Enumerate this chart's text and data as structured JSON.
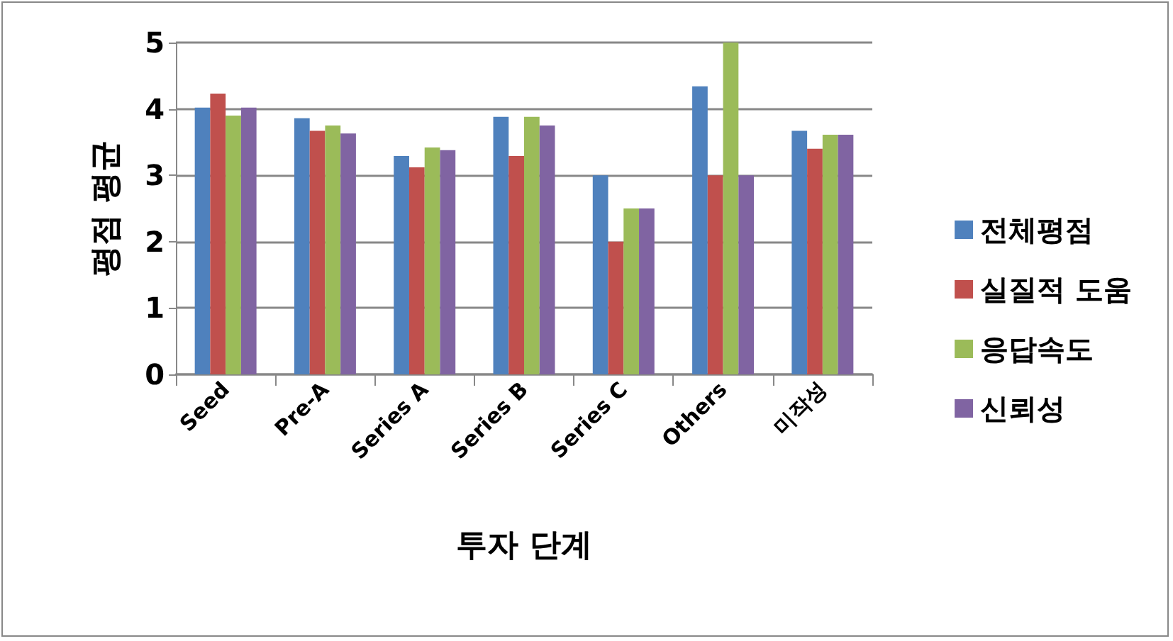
{
  "chart_data": {
    "type": "bar",
    "xlabel": "투자 단계",
    "ylabel": "평점 평균",
    "categories": [
      "Seed",
      "Pre-A",
      "Series A",
      "Series B",
      "Series C",
      "Others",
      "미작성"
    ],
    "series": [
      {
        "name": "전체평점",
        "color": "#4f81bd",
        "values": [
          4.02,
          3.86,
          3.29,
          3.88,
          3.0,
          4.34,
          3.67
        ]
      },
      {
        "name": "실질적 도움",
        "color": "#c0504d",
        "values": [
          4.23,
          3.67,
          3.12,
          3.29,
          2.0,
          3.0,
          3.4
        ]
      },
      {
        "name": "응답속도",
        "color": "#9bbb59",
        "values": [
          3.9,
          3.75,
          3.42,
          3.88,
          2.5,
          5.0,
          3.61
        ]
      },
      {
        "name": "신뢰성",
        "color": "#8064a2",
        "values": [
          4.02,
          3.63,
          3.38,
          3.75,
          2.5,
          3.0,
          3.61
        ]
      }
    ],
    "ylim": [
      0,
      5
    ],
    "yticks": [
      0,
      1,
      2,
      3,
      4,
      5
    ],
    "grid": "y",
    "legend": "right"
  }
}
